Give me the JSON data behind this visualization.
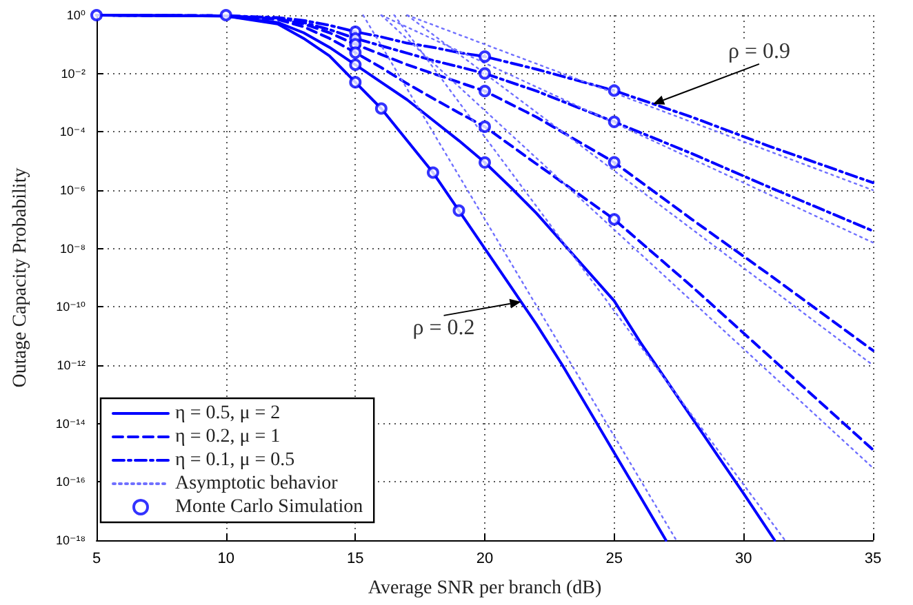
{
  "chart_data": {
    "type": "line",
    "xlabel": "Average SNR per branch (dB)",
    "ylabel": "Outage Capacity Probability",
    "xlim": [
      5,
      35
    ],
    "xticks": [
      5,
      10,
      15,
      20,
      25,
      30,
      35
    ],
    "ylim": [
      1e-18,
      1
    ],
    "log": "y",
    "yticks": [
      {
        "value": 1e-18,
        "label": "10⁻¹⁸"
      },
      {
        "value": 1e-16,
        "label": "10⁻¹⁶"
      },
      {
        "value": 1e-14,
        "label": "10⁻¹⁴"
      },
      {
        "value": 1e-12,
        "label": "10⁻¹²"
      },
      {
        "value": 1e-10,
        "label": "10⁻¹⁰"
      },
      {
        "value": 1e-08,
        "label": "10⁻⁸"
      },
      {
        "value": 1e-06,
        "label": "10⁻⁶"
      },
      {
        "value": 0.0001,
        "label": "10⁻⁴"
      },
      {
        "value": 0.01,
        "label": "10⁻²"
      },
      {
        "value": 1,
        "label": "10⁰"
      }
    ],
    "grid": true,
    "legend": "bottom left",
    "marker": "none",
    "series": [
      {
        "name": "η = 0.5, μ = 2",
        "color": "#0000ff",
        "line_style": "solid",
        "x": [
          5,
          10,
          12,
          13,
          14,
          15,
          16,
          17,
          18,
          19,
          20,
          21,
          22,
          23,
          24,
          25,
          26,
          27
        ],
        "values": [
          1,
          0.93,
          0.5,
          0.16,
          0.04,
          0.005,
          0.00063,
          5e-05,
          4e-06,
          2e-07,
          1e-08,
          5e-10,
          2.5e-11,
          1e-12,
          3.2e-14,
          1e-15,
          3.2e-17,
          1e-18
        ]
      },
      {
        "color": "#0000ff",
        "line_style": "solid",
        "x": [
          5,
          10,
          12,
          13,
          14,
          15,
          16,
          17,
          18,
          19,
          20,
          21,
          22,
          23,
          24,
          25,
          26,
          27,
          28,
          29,
          30,
          31.2
        ],
        "values": [
          1,
          0.93,
          0.56,
          0.25,
          0.079,
          0.02,
          0.005,
          0.00126,
          0.00025,
          5e-05,
          8.9e-06,
          1.26e-06,
          1.6e-07,
          1.6e-08,
          1.6e-09,
          1.6e-10,
          6.3e-12,
          3.2e-13,
          1.6e-14,
          7.9e-16,
          4e-17,
          1e-18
        ]
      },
      {
        "name": "η = 0.2, μ = 1",
        "color": "#0000ff",
        "line_style": "dashed",
        "x": [
          5,
          10,
          12,
          13,
          14,
          15,
          16,
          17,
          18,
          19,
          20,
          22,
          25,
          28,
          31,
          35
        ],
        "values": [
          1,
          0.95,
          0.71,
          0.4,
          0.16,
          0.052,
          0.016,
          0.0045,
          0.0014,
          0.00045,
          0.00015,
          7.9e-06,
          1e-07,
          5e-10,
          2e-12,
          1.26e-15
        ]
      },
      {
        "color": "#0000ff",
        "line_style": "dashed",
        "x": [
          5,
          10,
          12,
          13,
          14,
          15,
          16,
          17,
          18,
          19,
          20,
          22,
          25,
          28,
          31,
          35
        ],
        "values": [
          1,
          0.95,
          0.76,
          0.5,
          0.25,
          0.1,
          0.045,
          0.02,
          0.01,
          0.005,
          0.0025,
          0.00032,
          9e-06,
          1e-07,
          1.26e-09,
          3.2e-12
        ]
      },
      {
        "name": "η = 0.1, μ = 0.5",
        "color": "#0000ff",
        "line_style": "dashdot",
        "x": [
          5,
          10,
          12,
          13,
          14,
          15,
          16,
          17,
          18,
          19,
          20,
          22,
          25,
          28,
          31,
          35
        ],
        "values": [
          1,
          0.95,
          0.79,
          0.56,
          0.32,
          0.16,
          0.089,
          0.05,
          0.028,
          0.017,
          0.01,
          0.0025,
          0.00022,
          1.8e-05,
          1.26e-06,
          4e-08
        ]
      },
      {
        "color": "#0000ff",
        "line_style": "dashdot",
        "x": [
          5,
          10,
          12,
          13,
          14,
          15,
          16,
          17,
          18,
          19,
          20,
          22,
          25,
          28,
          31,
          35
        ],
        "values": [
          1,
          0.95,
          0.83,
          0.66,
          0.45,
          0.27,
          0.18,
          0.11,
          0.079,
          0.052,
          0.038,
          0.014,
          0.0026,
          0.00032,
          3.2e-05,
          1.8e-06
        ]
      },
      {
        "name": "Asymptotic behavior",
        "color": "#6f6fff",
        "line_style": "dotted",
        "x": [
          15.3,
          27.4
        ],
        "values": [
          1,
          1e-18
        ]
      },
      {
        "color": "#6f6fff",
        "line_style": "dotted",
        "x": [
          16.5,
          31.6
        ],
        "values": [
          1,
          1e-18
        ]
      },
      {
        "color": "#6f6fff",
        "line_style": "dotted",
        "x": [
          16,
          35
        ],
        "values": [
          1,
          3e-16
        ]
      },
      {
        "color": "#6f6fff",
        "line_style": "dotted",
        "x": [
          17,
          35
        ],
        "values": [
          1,
          1e-12
        ]
      },
      {
        "color": "#6f6fff",
        "line_style": "dotted",
        "x": [
          16,
          35
        ],
        "values": [
          1,
          1.6e-08
        ]
      },
      {
        "color": "#6f6fff",
        "line_style": "dotted",
        "x": [
          17,
          35
        ],
        "values": [
          1,
          1e-06
        ]
      },
      {
        "name": "Monte Carlo Simulation",
        "type": "scatter",
        "marker": "circle",
        "color": "#0000ff",
        "x": [
          5,
          10,
          15,
          15,
          15,
          15,
          15,
          15,
          16,
          18,
          19,
          20,
          20,
          20,
          20,
          20,
          25,
          25,
          25,
          25
        ],
        "values": [
          1,
          1,
          0.269,
          0.158,
          0.1,
          0.052,
          0.02,
          0.005,
          0.00063,
          4e-06,
          2e-07,
          0.038,
          0.01,
          0.0025,
          0.00015,
          8.9e-06,
          0.0026,
          0.00022,
          9e-06,
          1e-07
        ]
      }
    ],
    "annotations": [
      {
        "text": "ρ = 0.9",
        "x": 26.5,
        "y": 0.0009
      },
      {
        "text": "ρ = 0.2",
        "x": 21.4,
        "y": 1.5e-10
      }
    ]
  }
}
